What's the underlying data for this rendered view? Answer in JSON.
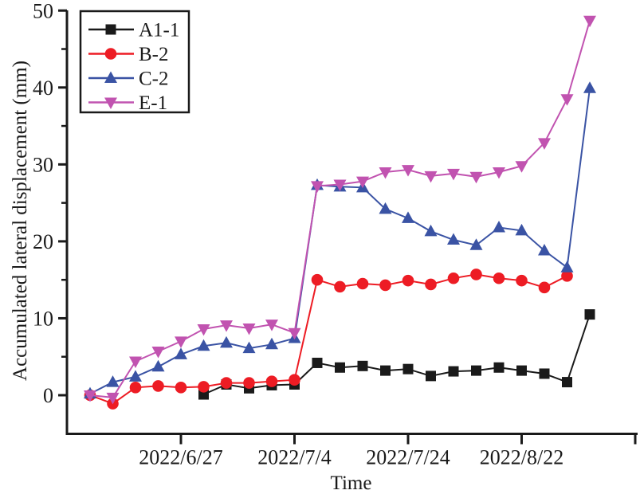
{
  "figure": {
    "background": "#ffffff",
    "text_color": "#1a1a1a"
  },
  "chart_data": {
    "type": "line",
    "title": "",
    "xlabel": "Time",
    "ylabel": "Accumulated lateral displacement (mm)",
    "grid": false,
    "legend_position": "top-left",
    "x_point_count": 23,
    "x_tick_labels": [
      {
        "index": 4,
        "label": "2022/6/27"
      },
      {
        "index": 9,
        "label": "2022/7/4"
      },
      {
        "index": 14,
        "label": "2022/7/24"
      },
      {
        "index": 19,
        "label": "2022/8/22"
      },
      {
        "index": 24,
        "label": ""
      }
    ],
    "ylim": [
      -5,
      50
    ],
    "y_major_ticks": [
      0,
      10,
      20,
      30,
      40,
      50
    ],
    "y_minor_ticks": [
      5,
      15,
      25,
      35,
      45
    ],
    "series": [
      {
        "name": "A1-1",
        "color": "#1a1a1a",
        "marker": "square",
        "values": [
          null,
          null,
          null,
          null,
          null,
          0.1,
          1.4,
          0.9,
          1.3,
          1.4,
          4.2,
          3.6,
          3.8,
          3.2,
          3.4,
          2.5,
          3.1,
          3.2,
          3.6,
          3.2,
          2.8,
          1.7,
          10.5
        ]
      },
      {
        "name": "B-2",
        "color": "#ed1c24",
        "marker": "circle",
        "values": [
          0.0,
          -1.1,
          1.0,
          1.2,
          1.0,
          1.1,
          1.6,
          1.6,
          1.8,
          2.0,
          15.0,
          14.1,
          14.5,
          14.3,
          14.9,
          14.4,
          15.2,
          15.7,
          15.2,
          14.9,
          14.0,
          15.5,
          null
        ]
      },
      {
        "name": "C-2",
        "color": "#3a53a4",
        "marker": "triangle-up",
        "values": [
          0.2,
          1.7,
          2.4,
          3.7,
          5.3,
          6.4,
          6.8,
          6.1,
          6.6,
          7.4,
          27.3,
          27.1,
          27.0,
          24.2,
          23.0,
          21.3,
          20.2,
          19.5,
          21.8,
          21.4,
          18.8,
          16.6,
          39.9
        ]
      },
      {
        "name": "E-1",
        "color": "#c153b0",
        "marker": "triangle-down",
        "values": [
          0.0,
          -0.3,
          4.4,
          5.7,
          7.0,
          8.6,
          9.1,
          8.7,
          9.2,
          8.1,
          27.2,
          27.4,
          27.8,
          29.0,
          29.3,
          28.5,
          28.8,
          28.4,
          29.0,
          29.8,
          32.8,
          38.5,
          48.7
        ]
      }
    ]
  }
}
